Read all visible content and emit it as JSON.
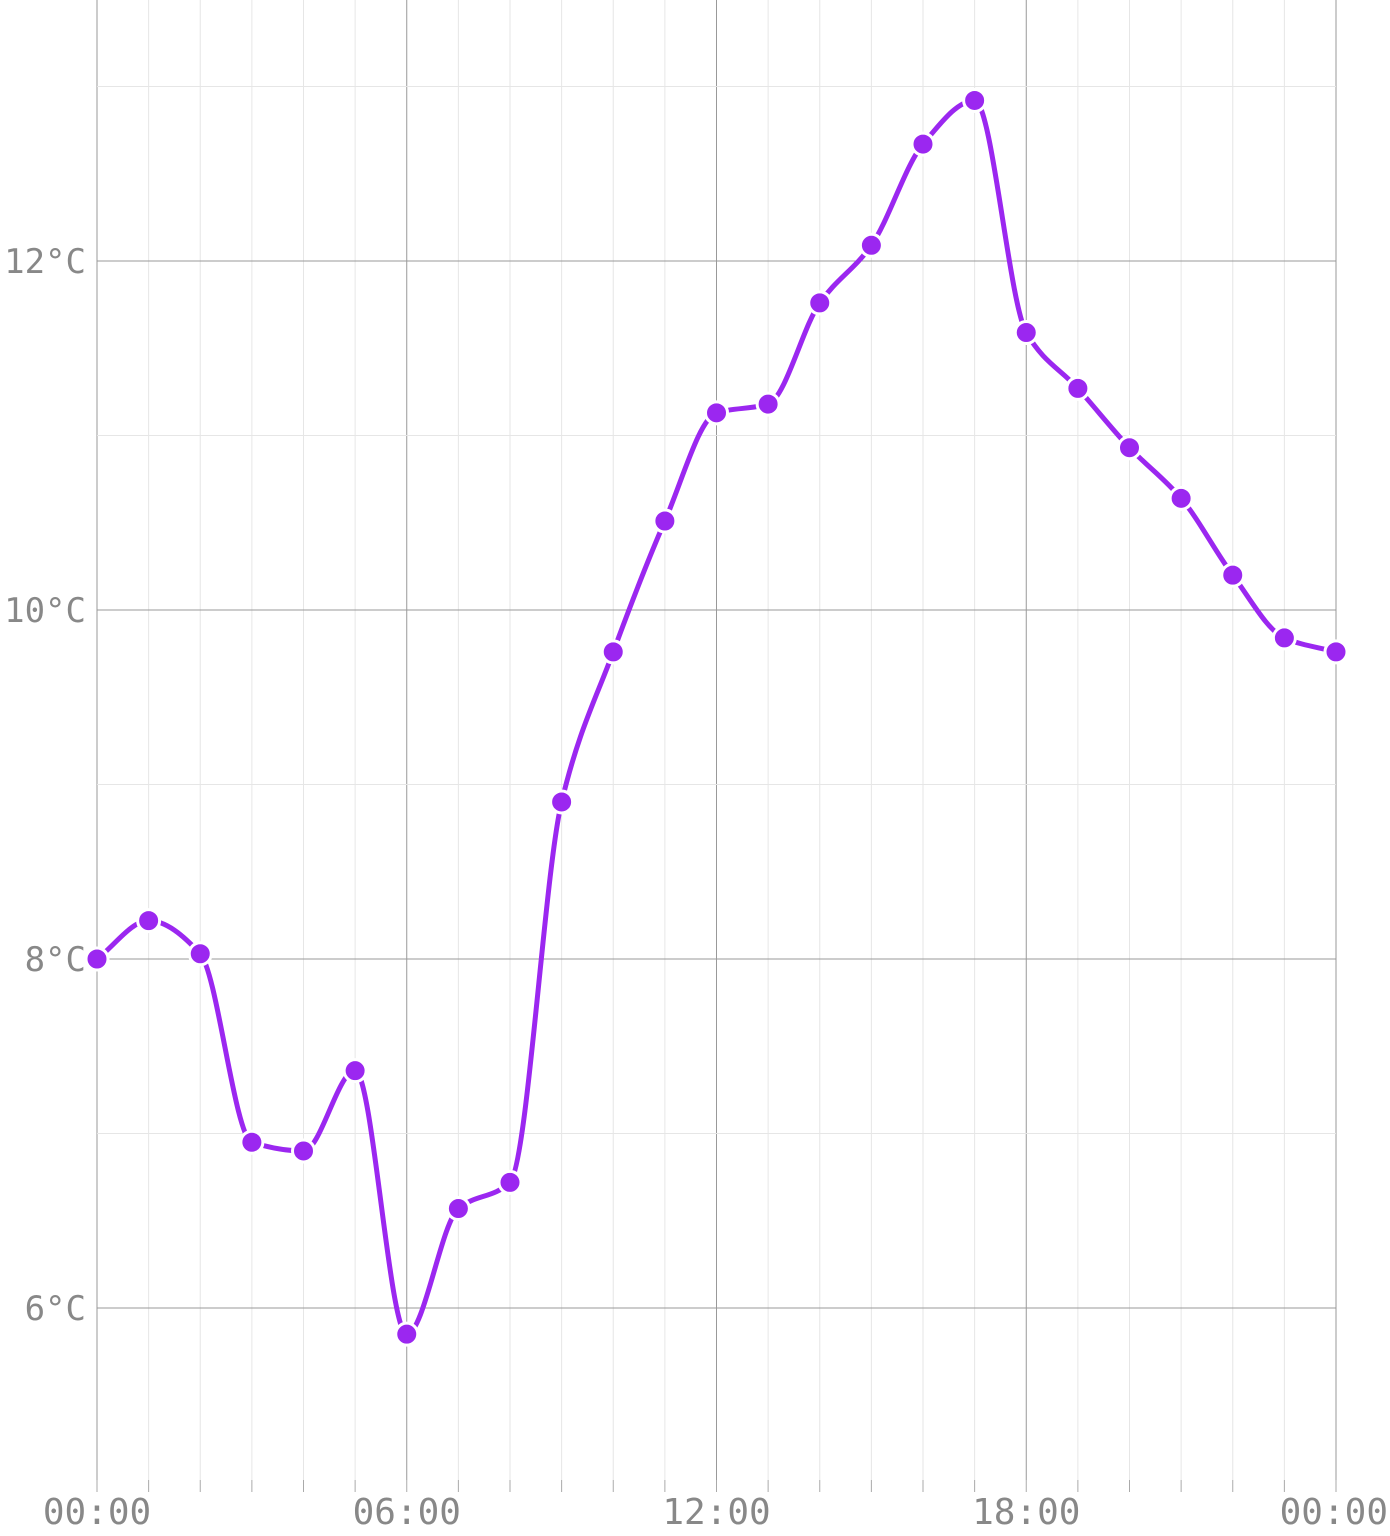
{
  "chart_data": {
    "type": "line",
    "title": "",
    "xlabel": "",
    "ylabel": "",
    "x_ticks": [
      "00:00",
      "06:00",
      "12:00",
      "18:00",
      "00:00"
    ],
    "y_ticks": [
      "6°C",
      "8°C",
      "10°C",
      "12°C"
    ],
    "y_tick_values": [
      6,
      8,
      10,
      12
    ],
    "ylim": [
      5.0,
      13.5
    ],
    "x_hours": [
      0,
      1,
      2,
      3,
      4,
      5,
      6,
      7,
      8,
      9,
      10,
      11,
      12,
      13,
      14,
      15,
      16,
      17,
      18,
      19,
      20,
      21,
      22,
      23,
      24
    ],
    "xlim": [
      0,
      24
    ],
    "grid": true,
    "series": [
      {
        "color": "#9b27f0",
        "values": [
          8.0,
          8.22,
          8.03,
          6.95,
          6.9,
          7.36,
          5.85,
          6.57,
          6.72,
          8.9,
          9.76,
          10.51,
          11.13,
          11.18,
          11.76,
          12.09,
          12.67,
          12.92,
          11.59,
          11.27,
          10.93,
          10.64,
          10.2,
          9.84,
          9.76
        ]
      }
    ]
  }
}
